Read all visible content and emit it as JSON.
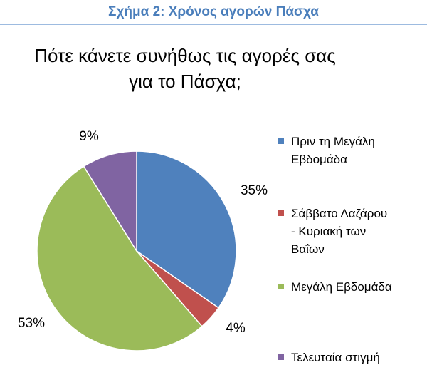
{
  "header": {
    "caption": "Σχήμα 2: Χρόνος αγορών Πάσχα"
  },
  "chart_data": {
    "type": "pie",
    "title": "Πότε κάνετε συνήθως τις αγορές σας για το Πάσχα;",
    "title_lines": [
      "Πότε κάνετε συνήθως τις αγορές σας",
      "για το Πάσχα;"
    ],
    "legend_position": "right",
    "slices": [
      {
        "label": "Πριν τη Μεγάλη Εβδομάδα",
        "label_lines": [
          "Πριν τη Μεγάλη",
          "Εβδομάδα"
        ],
        "value": 35,
        "display": "35%",
        "color": "#4f81bd"
      },
      {
        "label": "Σάββατο Λαζάρου - Κυριακή των Βαΐων",
        "label_lines": [
          "Σάββατο Λαζάρου",
          "- Κυριακή των",
          "Βαΐων"
        ],
        "value": 4,
        "display": "4%",
        "color": "#c0504d"
      },
      {
        "label": "Μεγάλη Εβδομάδα",
        "label_lines": [
          "Μεγάλη Εβδομάδα"
        ],
        "value": 53,
        "display": "53%",
        "color": "#9bbb59"
      },
      {
        "label": "Τελευταία στιγμή",
        "label_lines": [
          "Τελευταία στιγμή"
        ],
        "value": 9,
        "display": "9%",
        "color": "#8064a2"
      }
    ]
  }
}
